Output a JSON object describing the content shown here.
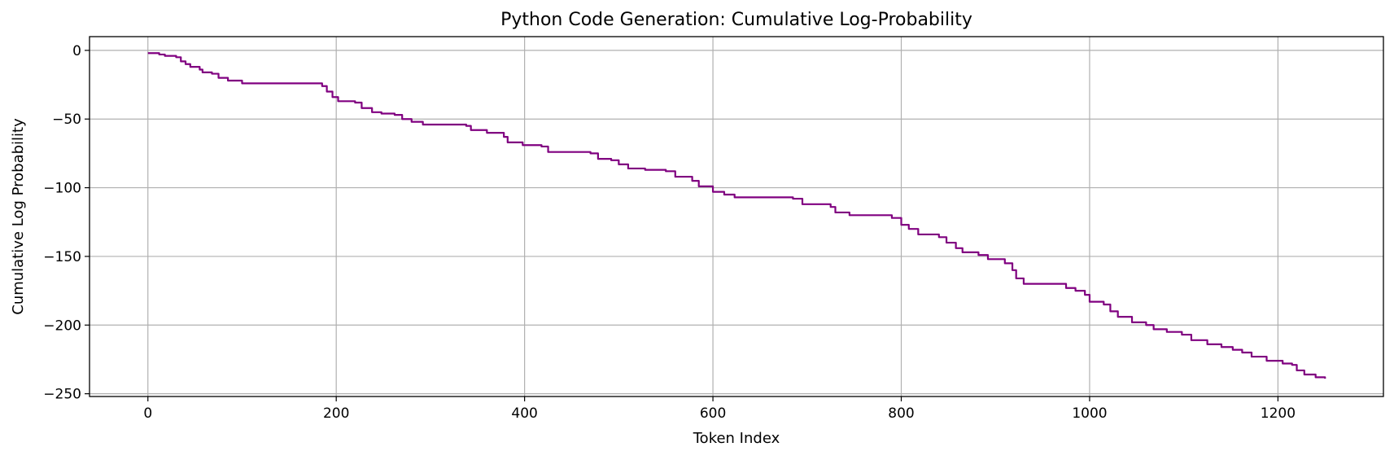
{
  "chart_data": {
    "type": "line",
    "title": "Python Code Generation: Cumulative Log-Probability",
    "xlabel": "Token Index",
    "ylabel": "Cumulative Log Probability",
    "xlim": [
      -62,
      1312
    ],
    "ylim": [
      -252,
      10
    ],
    "xticks": [
      0,
      200,
      400,
      600,
      800,
      1000,
      1200
    ],
    "yticks": [
      0,
      -50,
      -100,
      -150,
      -200,
      -250
    ],
    "grid": true,
    "legend": "none",
    "series": [
      {
        "color": "#800080",
        "points": [
          [
            0,
            -2
          ],
          [
            12,
            -3
          ],
          [
            18,
            -4
          ],
          [
            30,
            -5
          ],
          [
            35,
            -8
          ],
          [
            40,
            -10
          ],
          [
            45,
            -12
          ],
          [
            55,
            -14
          ],
          [
            58,
            -16
          ],
          [
            68,
            -17
          ],
          [
            75,
            -20
          ],
          [
            85,
            -22
          ],
          [
            100,
            -24
          ],
          [
            178,
            -24
          ],
          [
            185,
            -26
          ],
          [
            190,
            -30
          ],
          [
            196,
            -34
          ],
          [
            202,
            -37
          ],
          [
            220,
            -38
          ],
          [
            227,
            -42
          ],
          [
            238,
            -45
          ],
          [
            248,
            -46
          ],
          [
            262,
            -47
          ],
          [
            270,
            -50
          ],
          [
            280,
            -52
          ],
          [
            292,
            -54
          ],
          [
            338,
            -55
          ],
          [
            343,
            -58
          ],
          [
            360,
            -60
          ],
          [
            378,
            -63
          ],
          [
            382,
            -67
          ],
          [
            398,
            -69
          ],
          [
            418,
            -70
          ],
          [
            425,
            -74
          ],
          [
            470,
            -75
          ],
          [
            478,
            -79
          ],
          [
            492,
            -80
          ],
          [
            500,
            -83
          ],
          [
            510,
            -86
          ],
          [
            528,
            -87
          ],
          [
            550,
            -88
          ],
          [
            560,
            -92
          ],
          [
            578,
            -95
          ],
          [
            585,
            -99
          ],
          [
            600,
            -103
          ],
          [
            612,
            -105
          ],
          [
            623,
            -107
          ],
          [
            685,
            -108
          ],
          [
            695,
            -112
          ],
          [
            725,
            -114
          ],
          [
            730,
            -118
          ],
          [
            745,
            -120
          ],
          [
            790,
            -122
          ],
          [
            800,
            -127
          ],
          [
            808,
            -130
          ],
          [
            818,
            -134
          ],
          [
            840,
            -136
          ],
          [
            848,
            -140
          ],
          [
            858,
            -144
          ],
          [
            865,
            -147
          ],
          [
            882,
            -149
          ],
          [
            892,
            -152
          ],
          [
            910,
            -155
          ],
          [
            918,
            -160
          ],
          [
            922,
            -166
          ],
          [
            930,
            -170
          ],
          [
            975,
            -173
          ],
          [
            985,
            -175
          ],
          [
            995,
            -178
          ],
          [
            1000,
            -183
          ],
          [
            1015,
            -185
          ],
          [
            1022,
            -190
          ],
          [
            1030,
            -194
          ],
          [
            1045,
            -198
          ],
          [
            1060,
            -200
          ],
          [
            1068,
            -203
          ],
          [
            1082,
            -205
          ],
          [
            1098,
            -207
          ],
          [
            1108,
            -211
          ],
          [
            1125,
            -214
          ],
          [
            1140,
            -216
          ],
          [
            1152,
            -218
          ],
          [
            1162,
            -220
          ],
          [
            1172,
            -223
          ],
          [
            1188,
            -226
          ],
          [
            1205,
            -228
          ],
          [
            1215,
            -229
          ],
          [
            1220,
            -233
          ],
          [
            1228,
            -236
          ],
          [
            1240,
            -238
          ],
          [
            1250,
            -239
          ]
        ]
      }
    ]
  }
}
